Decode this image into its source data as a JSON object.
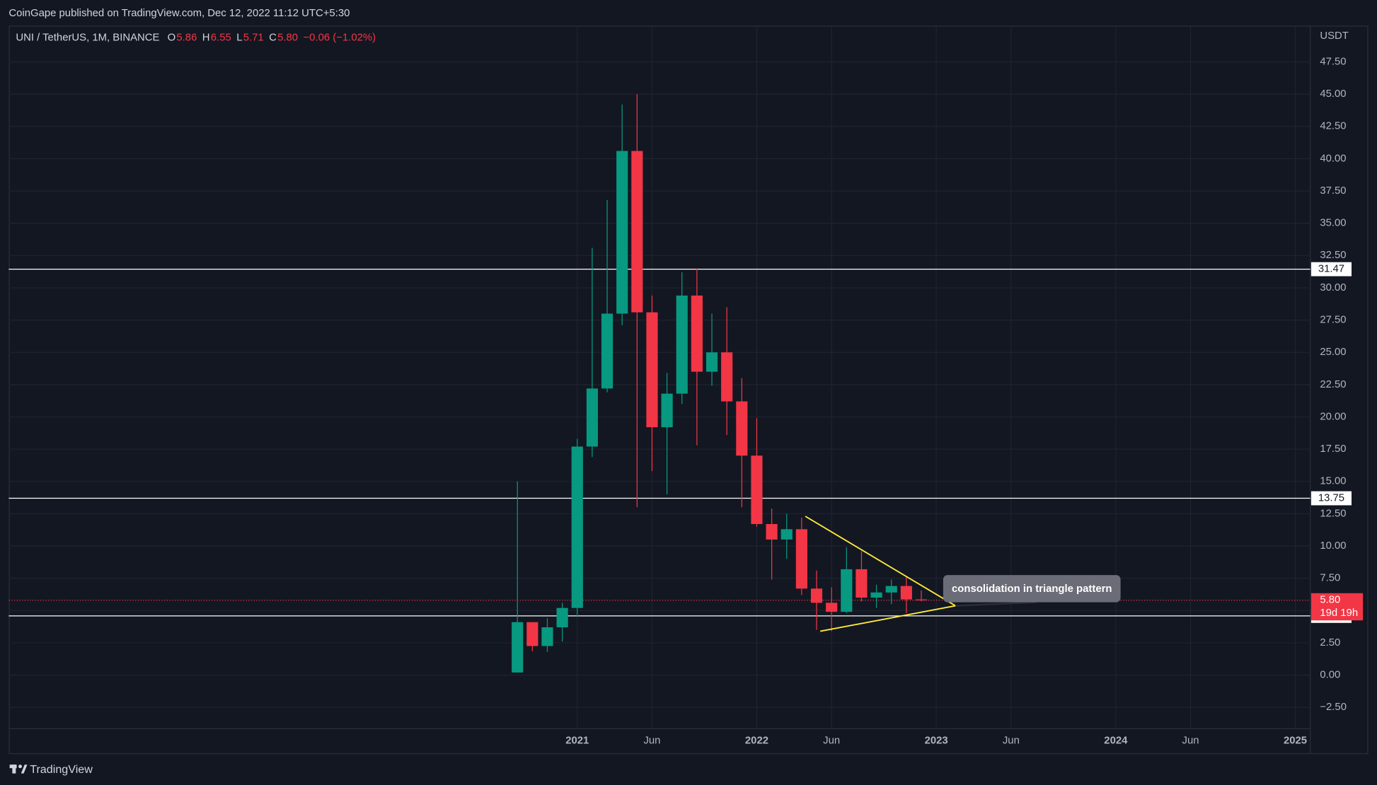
{
  "header": {
    "published": "CoinGape published on TradingView.com, Dec 12, 2022 11:12 UTC+5:30",
    "brand": "TradingView"
  },
  "chart_data": {
    "type": "candlestick",
    "legend": {
      "symbol": "UNI / TetherUS, 1M, BINANCE",
      "open_letter": "O",
      "open": 5.86,
      "high_letter": "H",
      "high": 6.55,
      "low_letter": "L",
      "low": 5.71,
      "close_letter": "C",
      "close": {
        "value": 5.8,
        "label": "5.80"
      },
      "change": "−0.06 (−1.02%)"
    },
    "y_axis_label": "USDT",
    "x": [
      "2020-09",
      "2020-10",
      "2020-11",
      "2020-12",
      "2021-01",
      "2021-02",
      "2021-03",
      "2021-04",
      "2021-05",
      "2021-06",
      "2021-07",
      "2021-08",
      "2021-09",
      "2021-10",
      "2021-11",
      "2021-12",
      "2022-01",
      "2022-02",
      "2022-03",
      "2022-04",
      "2022-05",
      "2022-06",
      "2022-07",
      "2022-08",
      "2022-09",
      "2022-10",
      "2022-11",
      "2022-12"
    ],
    "open": [
      0.2,
      4.1,
      2.25,
      3.7,
      5.2,
      17.7,
      22.2,
      28.0,
      40.6,
      28.1,
      19.2,
      21.8,
      29.4,
      23.5,
      25.0,
      21.2,
      17.0,
      11.7,
      10.5,
      11.3,
      6.7,
      5.6,
      4.9,
      8.2,
      6.0,
      6.4,
      6.9,
      5.86
    ],
    "high": [
      15.0,
      4.1,
      4.4,
      5.6,
      18.3,
      33.1,
      36.8,
      44.2,
      45.0,
      29.4,
      23.4,
      31.2,
      31.5,
      28.0,
      28.5,
      23.0,
      19.9,
      12.9,
      12.5,
      12.2,
      8.1,
      6.8,
      9.9,
      9.6,
      7.0,
      7.4,
      7.6,
      6.55
    ],
    "low": [
      0.2,
      1.85,
      1.8,
      2.6,
      4.5,
      16.9,
      21.9,
      27.1,
      13.0,
      15.8,
      14.0,
      21.0,
      17.8,
      22.4,
      18.6,
      13.0,
      11.5,
      7.4,
      9.0,
      6.2,
      3.5,
      3.4,
      4.8,
      5.7,
      5.2,
      5.5,
      4.8,
      5.71
    ],
    "close": [
      4.1,
      2.25,
      3.7,
      5.2,
      17.7,
      22.2,
      28.0,
      40.6,
      28.1,
      19.2,
      21.8,
      29.4,
      23.5,
      25.0,
      21.2,
      17.0,
      11.7,
      10.5,
      11.3,
      6.7,
      5.6,
      4.9,
      8.2,
      6.0,
      6.4,
      6.9,
      5.86,
      5.8
    ],
    "up_color": "#089981",
    "down_color": "#f23645",
    "ylim": [
      -4.15,
      50.24
    ],
    "yticks": [
      {
        "value": -2.5,
        "label": "−2.50"
      },
      {
        "value": 0,
        "label": "0.00"
      },
      {
        "value": 2.5,
        "label": "2.50"
      },
      {
        "value": 5,
        "label": "5.00"
      },
      {
        "value": 7.5,
        "label": "7.50"
      },
      {
        "value": 10,
        "label": "10.00"
      },
      {
        "value": 12.5,
        "label": "12.50"
      },
      {
        "value": 15,
        "label": "15.00"
      },
      {
        "value": 17.5,
        "label": "17.50"
      },
      {
        "value": 20,
        "label": "20.00"
      },
      {
        "value": 22.5,
        "label": "22.50"
      },
      {
        "value": 25,
        "label": "25.00"
      },
      {
        "value": 27.5,
        "label": "27.50"
      },
      {
        "value": 30,
        "label": "30.00"
      },
      {
        "value": 32.5,
        "label": "32.50"
      },
      {
        "value": 35,
        "label": "35.00"
      },
      {
        "value": 37.5,
        "label": "37.50"
      },
      {
        "value": 40,
        "label": "40.00"
      },
      {
        "value": 42.5,
        "label": "42.50"
      },
      {
        "value": 45,
        "label": "45.00"
      },
      {
        "value": 47.5,
        "label": "47.50"
      }
    ],
    "xlim": [
      "2017-11",
      "2025-02"
    ],
    "xticks": [
      {
        "value": "2021-01",
        "label": "2021"
      },
      {
        "value": "2021-06",
        "label": "Jun"
      },
      {
        "value": "2022-01",
        "label": "2022"
      },
      {
        "value": "2022-06",
        "label": "Jun"
      },
      {
        "value": "2023-01",
        "label": "2023"
      },
      {
        "value": "2023-06",
        "label": "Jun"
      },
      {
        "value": "2024-01",
        "label": "2024"
      },
      {
        "value": "2024-06",
        "label": "Jun"
      },
      {
        "value": "2025-01",
        "label": "2025"
      }
    ],
    "grid": true,
    "levels": [
      31.47,
      13.75,
      4.65
    ],
    "last_price": {
      "value": 5.8,
      "label": "5.80",
      "countdown": "19d 19h"
    },
    "annotation": "consolidation in triangle pattern"
  }
}
